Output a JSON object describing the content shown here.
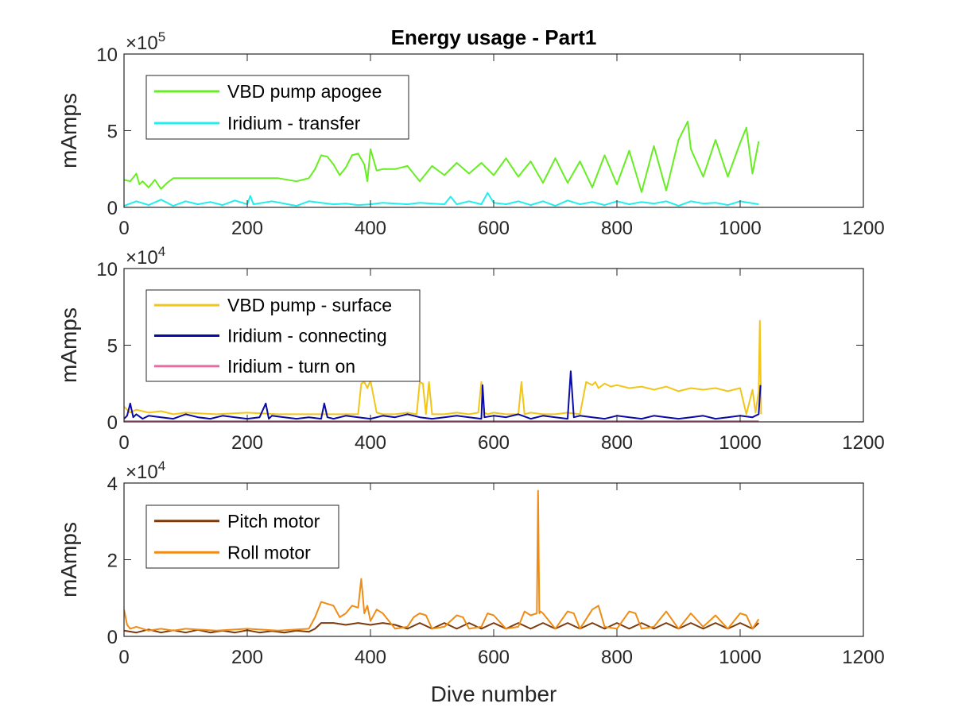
{
  "chart_data": [
    {
      "type": "line",
      "title": "Energy usage - Part1",
      "xlabel": "",
      "ylabel": "mAmps",
      "xlim": [
        0,
        1200
      ],
      "ylim": [
        0,
        1000000
      ],
      "x_ticks": [
        "0",
        "200",
        "400",
        "600",
        "800",
        "1000",
        "1200"
      ],
      "y_ticks": [
        "0",
        "5",
        "10"
      ],
      "y_exponent": "5",
      "legend_position": "top-left",
      "grid": false,
      "series": [
        {
          "name": "VBD pump apogee",
          "color": "#66ee22",
          "x": [
            0,
            10,
            20,
            25,
            30,
            40,
            50,
            60,
            70,
            80,
            100,
            150,
            200,
            250,
            280,
            300,
            310,
            320,
            330,
            340,
            350,
            360,
            370,
            380,
            390,
            395,
            400,
            410,
            420,
            440,
            460,
            480,
            500,
            520,
            540,
            560,
            580,
            600,
            620,
            640,
            660,
            680,
            700,
            720,
            740,
            760,
            780,
            800,
            820,
            840,
            860,
            880,
            900,
            915,
            920,
            940,
            960,
            980,
            1000,
            1010,
            1020,
            1030
          ],
          "y": [
            180000,
            170000,
            220000,
            150000,
            170000,
            130000,
            180000,
            120000,
            160000,
            190000,
            190000,
            190000,
            190000,
            190000,
            170000,
            190000,
            250000,
            340000,
            330000,
            280000,
            210000,
            260000,
            340000,
            350000,
            280000,
            170000,
            380000,
            240000,
            250000,
            250000,
            270000,
            170000,
            270000,
            210000,
            290000,
            220000,
            290000,
            210000,
            320000,
            200000,
            300000,
            160000,
            320000,
            160000,
            300000,
            130000,
            340000,
            150000,
            370000,
            100000,
            400000,
            110000,
            440000,
            560000,
            380000,
            200000,
            440000,
            200000,
            420000,
            520000,
            220000,
            430000
          ]
        },
        {
          "name": "Iridium - transfer",
          "color": "#22eeee",
          "x": [
            0,
            20,
            40,
            60,
            80,
            100,
            120,
            140,
            160,
            180,
            200,
            205,
            210,
            240,
            280,
            300,
            320,
            340,
            360,
            380,
            400,
            420,
            440,
            460,
            480,
            500,
            520,
            530,
            540,
            560,
            580,
            590,
            600,
            620,
            640,
            660,
            680,
            700,
            720,
            740,
            760,
            780,
            800,
            820,
            840,
            860,
            880,
            900,
            920,
            940,
            960,
            980,
            1000,
            1030
          ],
          "y": [
            10000,
            40000,
            15000,
            50000,
            10000,
            40000,
            20000,
            35000,
            15000,
            45000,
            20000,
            75000,
            20000,
            40000,
            10000,
            40000,
            30000,
            20000,
            25000,
            15000,
            20000,
            30000,
            25000,
            20000,
            30000,
            25000,
            20000,
            70000,
            20000,
            40000,
            20000,
            95000,
            30000,
            20000,
            40000,
            15000,
            40000,
            10000,
            45000,
            20000,
            35000,
            15000,
            40000,
            20000,
            35000,
            25000,
            40000,
            10000,
            40000,
            25000,
            30000,
            15000,
            40000,
            20000
          ]
        }
      ]
    },
    {
      "type": "line",
      "title": "",
      "xlabel": "",
      "ylabel": "mAmps",
      "xlim": [
        0,
        1200
      ],
      "ylim": [
        0,
        100000
      ],
      "x_ticks": [
        "0",
        "200",
        "400",
        "600",
        "800",
        "1000",
        "1200"
      ],
      "y_ticks": [
        "0",
        "5",
        "10"
      ],
      "y_exponent": "4",
      "legend_position": "top-left",
      "grid": false,
      "series": [
        {
          "name": "VBD pump - surface",
          "color": "#f2c519",
          "x": [
            0,
            10,
            20,
            40,
            60,
            80,
            100,
            150,
            200,
            250,
            300,
            350,
            380,
            385,
            390,
            395,
            400,
            410,
            420,
            440,
            460,
            475,
            480,
            485,
            490,
            495,
            500,
            520,
            540,
            560,
            575,
            580,
            585,
            590,
            600,
            620,
            640,
            645,
            650,
            660,
            680,
            700,
            720,
            740,
            750,
            755,
            760,
            765,
            770,
            780,
            790,
            800,
            820,
            840,
            860,
            880,
            900,
            920,
            940,
            960,
            980,
            1000,
            1010,
            1020,
            1025,
            1030,
            1032,
            1034
          ],
          "y": [
            10000,
            6000,
            8000,
            6000,
            7000,
            5000,
            6000,
            5000,
            6000,
            5000,
            5000,
            5000,
            5000,
            25000,
            26000,
            22000,
            27000,
            6000,
            5000,
            5000,
            6000,
            5000,
            26000,
            25000,
            5000,
            26000,
            5000,
            5000,
            6000,
            5000,
            6000,
            26000,
            6000,
            5000,
            6000,
            5000,
            5000,
            26000,
            5000,
            6000,
            5000,
            5000,
            6000,
            5000,
            26000,
            25000,
            24000,
            26000,
            22000,
            25000,
            23000,
            24000,
            22000,
            23000,
            21000,
            23000,
            20000,
            22000,
            21000,
            22000,
            20000,
            22000,
            5000,
            21000,
            6000,
            20000,
            66000,
            5000
          ]
        },
        {
          "name": "Iridium - connecting",
          "color": "#0a0aa8",
          "x": [
            0,
            5,
            10,
            15,
            20,
            30,
            40,
            60,
            80,
            100,
            120,
            140,
            160,
            180,
            200,
            220,
            230,
            235,
            240,
            260,
            280,
            300,
            320,
            325,
            330,
            340,
            360,
            380,
            400,
            420,
            440,
            460,
            480,
            500,
            520,
            540,
            560,
            580,
            582,
            585,
            600,
            620,
            640,
            660,
            680,
            700,
            720,
            725,
            730,
            740,
            760,
            780,
            800,
            820,
            840,
            860,
            880,
            900,
            920,
            940,
            960,
            980,
            1000,
            1020,
            1030,
            1033
          ],
          "y": [
            2000,
            4000,
            12000,
            3000,
            5000,
            2000,
            4000,
            3000,
            2000,
            5000,
            3000,
            2000,
            4000,
            3000,
            2000,
            3000,
            12000,
            2000,
            4000,
            3000,
            2000,
            3000,
            2000,
            12000,
            3000,
            2000,
            4000,
            3000,
            2000,
            4000,
            3000,
            5000,
            3000,
            2000,
            3000,
            4000,
            3000,
            2000,
            24000,
            3000,
            4000,
            3000,
            5000,
            2000,
            4000,
            3000,
            2000,
            33000,
            3000,
            4000,
            3000,
            2000,
            4000,
            3000,
            2000,
            4000,
            3000,
            2000,
            3000,
            4000,
            2000,
            3000,
            4000,
            3000,
            5000,
            24000
          ]
        },
        {
          "name": "Iridium - turn on",
          "color": "#e86ba6",
          "x": [
            0,
            100,
            200,
            300,
            400,
            500,
            600,
            700,
            800,
            900,
            1000,
            1030
          ],
          "y": [
            500,
            500,
            500,
            500,
            500,
            500,
            500,
            500,
            500,
            500,
            500,
            500
          ]
        }
      ]
    },
    {
      "type": "line",
      "title": "",
      "xlabel": "Dive number",
      "ylabel": "mAmps",
      "xlim": [
        0,
        1200
      ],
      "ylim": [
        0,
        40000
      ],
      "x_ticks": [
        "0",
        "200",
        "400",
        "600",
        "800",
        "1000",
        "1200"
      ],
      "y_ticks": [
        "0",
        "2",
        "4"
      ],
      "y_exponent": "4",
      "legend_position": "top-left",
      "grid": false,
      "series": [
        {
          "name": "Pitch motor",
          "color": "#7a3a0e",
          "x": [
            0,
            20,
            40,
            60,
            80,
            100,
            120,
            140,
            160,
            180,
            200,
            220,
            240,
            260,
            280,
            300,
            310,
            320,
            340,
            360,
            380,
            400,
            420,
            440,
            460,
            480,
            500,
            520,
            540,
            560,
            580,
            600,
            620,
            640,
            660,
            680,
            700,
            720,
            740,
            760,
            780,
            800,
            820,
            840,
            860,
            880,
            900,
            920,
            940,
            960,
            980,
            1000,
            1020,
            1030
          ],
          "y": [
            1500,
            1000,
            1800,
            1000,
            1600,
            1000,
            1700,
            1000,
            1500,
            1000,
            1600,
            1000,
            1400,
            1000,
            1500,
            1200,
            2000,
            3500,
            3500,
            3000,
            3500,
            3000,
            3500,
            3000,
            2000,
            3500,
            2000,
            3500,
            2000,
            3500,
            2000,
            3500,
            2000,
            3500,
            2000,
            3500,
            2000,
            3500,
            2000,
            3500,
            2000,
            3500,
            2000,
            3500,
            2000,
            3500,
            2000,
            3500,
            2000,
            3500,
            2000,
            3500,
            2000,
            3500
          ]
        },
        {
          "name": "Roll motor",
          "color": "#ef8c15",
          "x": [
            0,
            5,
            10,
            20,
            40,
            60,
            80,
            100,
            150,
            200,
            250,
            300,
            310,
            320,
            330,
            340,
            350,
            360,
            370,
            380,
            385,
            390,
            395,
            400,
            410,
            420,
            440,
            460,
            470,
            480,
            490,
            500,
            520,
            540,
            550,
            560,
            580,
            590,
            600,
            620,
            640,
            650,
            660,
            670,
            672,
            674,
            676,
            680,
            700,
            720,
            730,
            740,
            760,
            770,
            780,
            800,
            820,
            830,
            840,
            860,
            880,
            900,
            920,
            940,
            960,
            980,
            1000,
            1010,
            1020,
            1030
          ],
          "y": [
            7000,
            3000,
            2000,
            2500,
            1500,
            2000,
            1500,
            2000,
            1500,
            2000,
            1500,
            2000,
            5000,
            9000,
            8500,
            8000,
            5000,
            6000,
            8000,
            7500,
            15000,
            6000,
            8000,
            4000,
            7000,
            6000,
            2000,
            2500,
            5000,
            6000,
            5500,
            2000,
            2500,
            5500,
            5000,
            2000,
            2500,
            6000,
            5500,
            2000,
            2500,
            6500,
            5500,
            6000,
            38000,
            6000,
            6500,
            6000,
            2000,
            6500,
            6000,
            2000,
            7000,
            8000,
            2500,
            2000,
            6500,
            6000,
            2000,
            2500,
            6500,
            2000,
            6000,
            2500,
            5500,
            2000,
            6000,
            5500,
            2000,
            4500
          ]
        }
      ]
    }
  ]
}
